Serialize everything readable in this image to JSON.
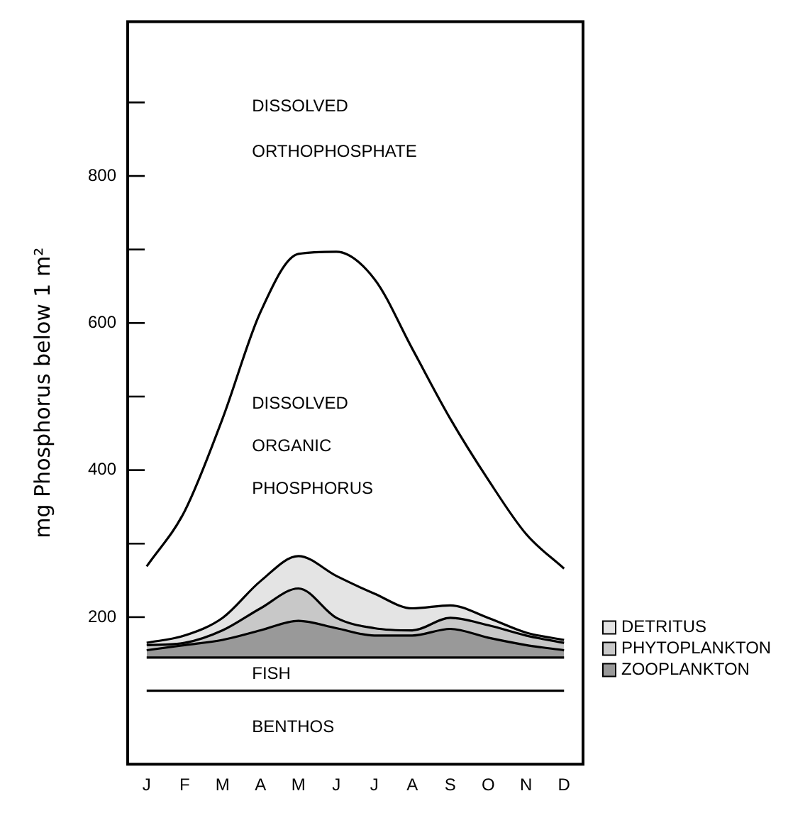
{
  "chart_data": {
    "type": "area",
    "stacked": true,
    "ylabel": "mg Phosphorus below 1 m²",
    "categories": [
      "J",
      "F",
      "M",
      "A",
      "M",
      "J",
      "J",
      "A",
      "S",
      "O",
      "N",
      "D"
    ],
    "series": [
      {
        "name": "BENTHOS",
        "color": "#ffffff",
        "values": [
          100,
          100,
          100,
          100,
          100,
          100,
          100,
          100,
          100,
          100,
          100,
          100
        ]
      },
      {
        "name": "FISH",
        "color": "#ffffff",
        "values": [
          45,
          45,
          45,
          45,
          45,
          45,
          45,
          45,
          45,
          45,
          45,
          45
        ]
      },
      {
        "name": "ZOOPLANKTON",
        "color": "#999999",
        "values": [
          10,
          17,
          24,
          37,
          50,
          40,
          30,
          30,
          39,
          27,
          17,
          10
        ]
      },
      {
        "name": "PHYTOPLANKTON",
        "color": "#c8c8c8",
        "values": [
          7,
          3,
          13,
          30,
          44,
          14,
          10,
          7,
          15,
          17,
          13,
          10
        ]
      },
      {
        "name": "DETRITUS",
        "color": "#e4e4e4",
        "values": [
          3,
          10,
          17,
          37,
          44,
          57,
          47,
          30,
          17,
          10,
          4,
          4
        ]
      },
      {
        "name": "DISSOLVED ORGANIC PHOSPHORUS",
        "color": "#ffffff",
        "values": [
          104,
          169,
          271,
          366,
          411,
          441,
          428,
          353,
          254,
          188,
          134,
          97
        ]
      }
    ],
    "annotations": [
      "DISSOLVED ORTHOPHOSPHATE"
    ],
    "ylim": [
      0,
      1010
    ],
    "yticks": [
      {
        "value": 200,
        "label": "200"
      },
      {
        "value": 300,
        "label": null
      },
      {
        "value": 400,
        "label": "400"
      },
      {
        "value": 500,
        "label": null
      },
      {
        "value": 600,
        "label": "600"
      },
      {
        "value": 700,
        "label": null
      },
      {
        "value": 800,
        "label": "800"
      },
      {
        "value": 900,
        "label": null
      }
    ],
    "grid": false,
    "legend": "right",
    "marker": "none",
    "line_style": "solid"
  }
}
